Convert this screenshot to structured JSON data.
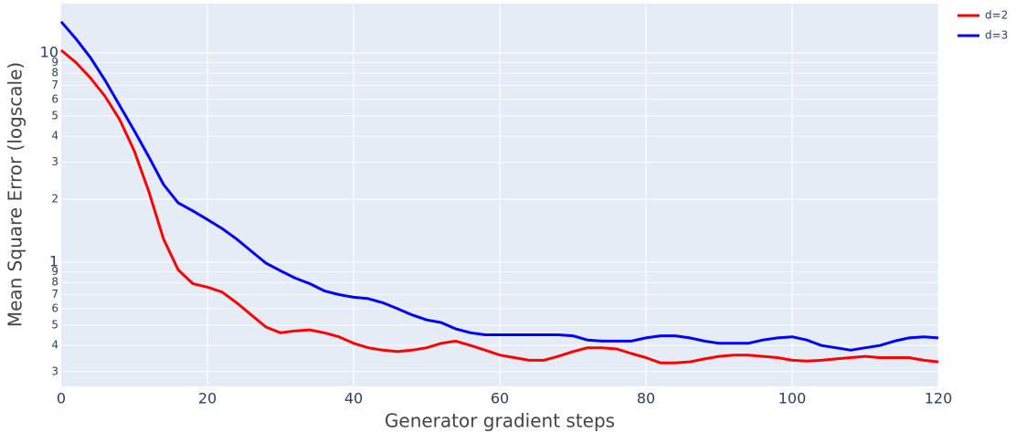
{
  "chart_data": {
    "type": "line",
    "xlabel": "Generator gradient steps",
    "ylabel": "Mean Square Error (logscale)",
    "x": [
      0,
      2,
      4,
      6,
      8,
      10,
      12,
      14,
      16,
      18,
      20,
      22,
      24,
      26,
      28,
      30,
      32,
      34,
      36,
      38,
      40,
      42,
      44,
      46,
      48,
      50,
      52,
      54,
      56,
      58,
      60,
      62,
      64,
      66,
      68,
      70,
      72,
      74,
      76,
      78,
      80,
      82,
      84,
      86,
      88,
      90,
      92,
      94,
      96,
      98,
      100,
      102,
      104,
      106,
      108,
      110,
      112,
      114,
      116,
      118,
      120
    ],
    "series": [
      {
        "name": "d=2",
        "color": "#ff0000",
        "values": [
          10.3,
          9.0,
          7.6,
          6.2,
          4.8,
          3.4,
          2.17,
          1.29,
          0.92,
          0.79,
          0.76,
          0.72,
          0.64,
          0.56,
          0.49,
          0.46,
          0.47,
          0.475,
          0.46,
          0.44,
          0.41,
          0.39,
          0.38,
          0.374,
          0.38,
          0.39,
          0.41,
          0.42,
          0.4,
          0.38,
          0.36,
          0.35,
          0.34,
          0.34,
          0.355,
          0.374,
          0.39,
          0.39,
          0.385,
          0.366,
          0.35,
          0.33,
          0.33,
          0.334,
          0.345,
          0.355,
          0.36,
          0.36,
          0.355,
          0.35,
          0.34,
          0.337,
          0.34,
          0.345,
          0.35,
          0.355,
          0.35,
          0.35,
          0.35,
          0.34,
          0.334
        ]
      },
      {
        "name": "d=3",
        "color": "#0000ff",
        "values": [
          14.1,
          11.7,
          9.5,
          7.4,
          5.6,
          4.25,
          3.18,
          2.35,
          1.92,
          1.76,
          1.6,
          1.45,
          1.29,
          1.13,
          0.99,
          0.91,
          0.84,
          0.79,
          0.73,
          0.7,
          0.68,
          0.67,
          0.64,
          0.6,
          0.56,
          0.53,
          0.515,
          0.48,
          0.46,
          0.45,
          0.45,
          0.45,
          0.45,
          0.45,
          0.45,
          0.445,
          0.425,
          0.42,
          0.42,
          0.42,
          0.435,
          0.445,
          0.445,
          0.435,
          0.42,
          0.41,
          0.41,
          0.41,
          0.425,
          0.435,
          0.44,
          0.425,
          0.4,
          0.39,
          0.38,
          0.39,
          0.4,
          0.42,
          0.435,
          0.44,
          0.435
        ]
      }
    ],
    "xlim": [
      0,
      120
    ],
    "xticks": [
      0,
      20,
      40,
      60,
      80,
      100,
      120
    ],
    "ylog": true,
    "ylim": [
      0.255,
      17.2
    ],
    "yticks": [
      {
        "value": 0.3,
        "label": "3"
      },
      {
        "value": 0.4,
        "label": "4"
      },
      {
        "value": 0.5,
        "label": "5"
      },
      {
        "value": 0.6,
        "label": "6"
      },
      {
        "value": 0.7,
        "label": "7"
      },
      {
        "value": 0.8,
        "label": "8"
      },
      {
        "value": 0.9,
        "label": "9"
      },
      1,
      2,
      3,
      4,
      5,
      6,
      7,
      8,
      9,
      10
    ],
    "grid": true,
    "legend": "top-right"
  }
}
